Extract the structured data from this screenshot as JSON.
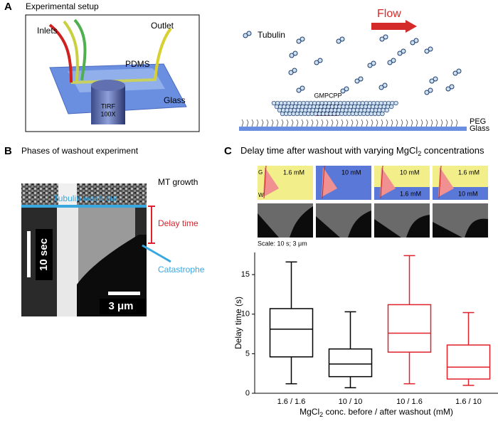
{
  "panel_a": {
    "letter": "A",
    "title": "Experimental setup",
    "inlets": "Inlets",
    "outlet": "Outlet",
    "pdms": "PDMS",
    "glass": "Glass",
    "tirf_1": "TIRF",
    "tirf_2": "100X",
    "flow": "Flow",
    "tubulin": "Tubulin",
    "gmpcpp": "GMPCPP",
    "peg": "PEG",
    "glass_right": "Glass"
  },
  "panel_b": {
    "letter": "B",
    "title": "Phases of washout experiment",
    "wash_out": "Tubulin wash out",
    "growth": "MT growth",
    "delay": "Delay time",
    "catastrophe": "Catastrophe",
    "time_scale": "10 sec",
    "length_scale": "3 μm"
  },
  "panel_c": {
    "letter": "C",
    "title_parts": [
      "Delay time after washout with varying MgCl",
      "2",
      " concentrations"
    ],
    "g": "G",
    "w": "W",
    "insets": [
      {
        "top": "1.6 mM"
      },
      {
        "top": "10 mM"
      },
      {
        "top": "10 mM",
        "bottom": "1.6 mM"
      },
      {
        "top": "1.6 mM",
        "bottom": "10 mM"
      }
    ],
    "scale": "Scale: 10 s; 3 μm"
  },
  "chart_data": {
    "type": "box",
    "ylabel": "Delay time (s)",
    "xlabel_parts": [
      "MgCl",
      "2",
      " conc. before / after washout (mM)"
    ],
    "categories": [
      "1.6 / 1.6",
      "10 / 10",
      "10 / 1.6",
      "1.6 / 10"
    ],
    "colors": [
      "#000000",
      "#000000",
      "#e0202a",
      "#e0202a"
    ],
    "min": [
      1.2,
      0.7,
      1.2,
      1.0
    ],
    "q1": [
      4.6,
      2.1,
      5.2,
      1.8
    ],
    "median": [
      8.1,
      3.7,
      7.6,
      3.3
    ],
    "q3": [
      10.7,
      5.6,
      11.2,
      6.1
    ],
    "max": [
      16.6,
      10.3,
      17.4,
      10.2
    ],
    "ylim": [
      0,
      17.8
    ],
    "yticks": [
      0,
      5,
      10,
      15
    ]
  }
}
